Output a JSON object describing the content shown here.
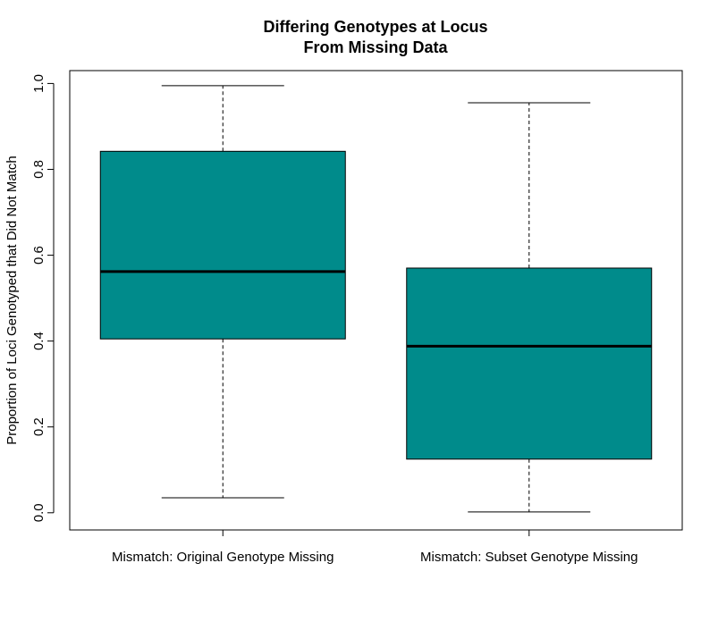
{
  "chart_data": {
    "type": "boxplot",
    "title_lines": [
      "Differing Genotypes at Locus",
      "From Missing Data"
    ],
    "xlabel": "",
    "ylabel": "Proportion of Loci Genotyped that Did Not Match",
    "ylim": [
      -0.04,
      1.03
    ],
    "yticks": [
      0.0,
      0.2,
      0.4,
      0.6,
      0.8,
      1.0
    ],
    "ytick_labels": [
      "0.0",
      "0.2",
      "0.4",
      "0.6",
      "0.8",
      "1.0"
    ],
    "categories": [
      "Mismatch: Original Genotype Missing",
      "Mismatch: Subset Genotype Missing"
    ],
    "boxes": [
      {
        "category": "Mismatch: Original Genotype Missing",
        "min": 0.035,
        "q1": 0.405,
        "median": 0.562,
        "q3": 0.842,
        "max": 0.995
      },
      {
        "category": "Mismatch: Subset Genotype Missing",
        "min": 0.002,
        "q1": 0.125,
        "median": 0.388,
        "q3": 0.57,
        "max": 0.955
      }
    ],
    "box_color": "#008B8B",
    "grid": false,
    "legend": "none"
  }
}
